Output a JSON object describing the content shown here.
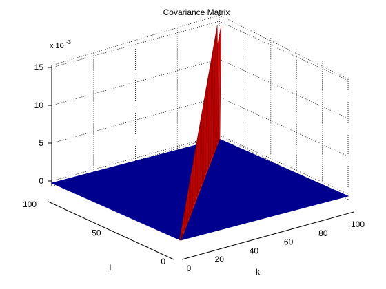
{
  "chart_data": {
    "type": "surface",
    "title": "Covariance Matrix",
    "xlabel": "k",
    "ylabel": "l",
    "zlabel": "",
    "z_multiplier_label": "x 10",
    "z_multiplier_exponent": "-3",
    "xlim": [
      0,
      100
    ],
    "ylim": [
      0,
      100
    ],
    "zlim": [
      -1,
      15
    ],
    "x_ticks": [
      "20",
      "40",
      "60",
      "80",
      "100"
    ],
    "x_tick_values": [
      20,
      40,
      60,
      80,
      100
    ],
    "y_ticks": [
      "0",
      "50",
      "100"
    ],
    "y_tick_values": [
      0,
      50,
      100
    ],
    "z_ticks": [
      "0",
      "5",
      "10",
      "15"
    ],
    "z_tick_values": [
      0,
      5,
      10,
      15
    ],
    "x_axis_zero_label": "0",
    "grid": true,
    "surface": {
      "base_value": 0,
      "ridge_line": "k = l (diagonal)",
      "ridge_peak": {
        "k": 100,
        "l": 100,
        "value": 0.015
      },
      "ridge_start": {
        "k": 0,
        "l": 0,
        "value": 0.0
      },
      "base_color": "#00008f",
      "ridge_color": "#c00000"
    }
  }
}
